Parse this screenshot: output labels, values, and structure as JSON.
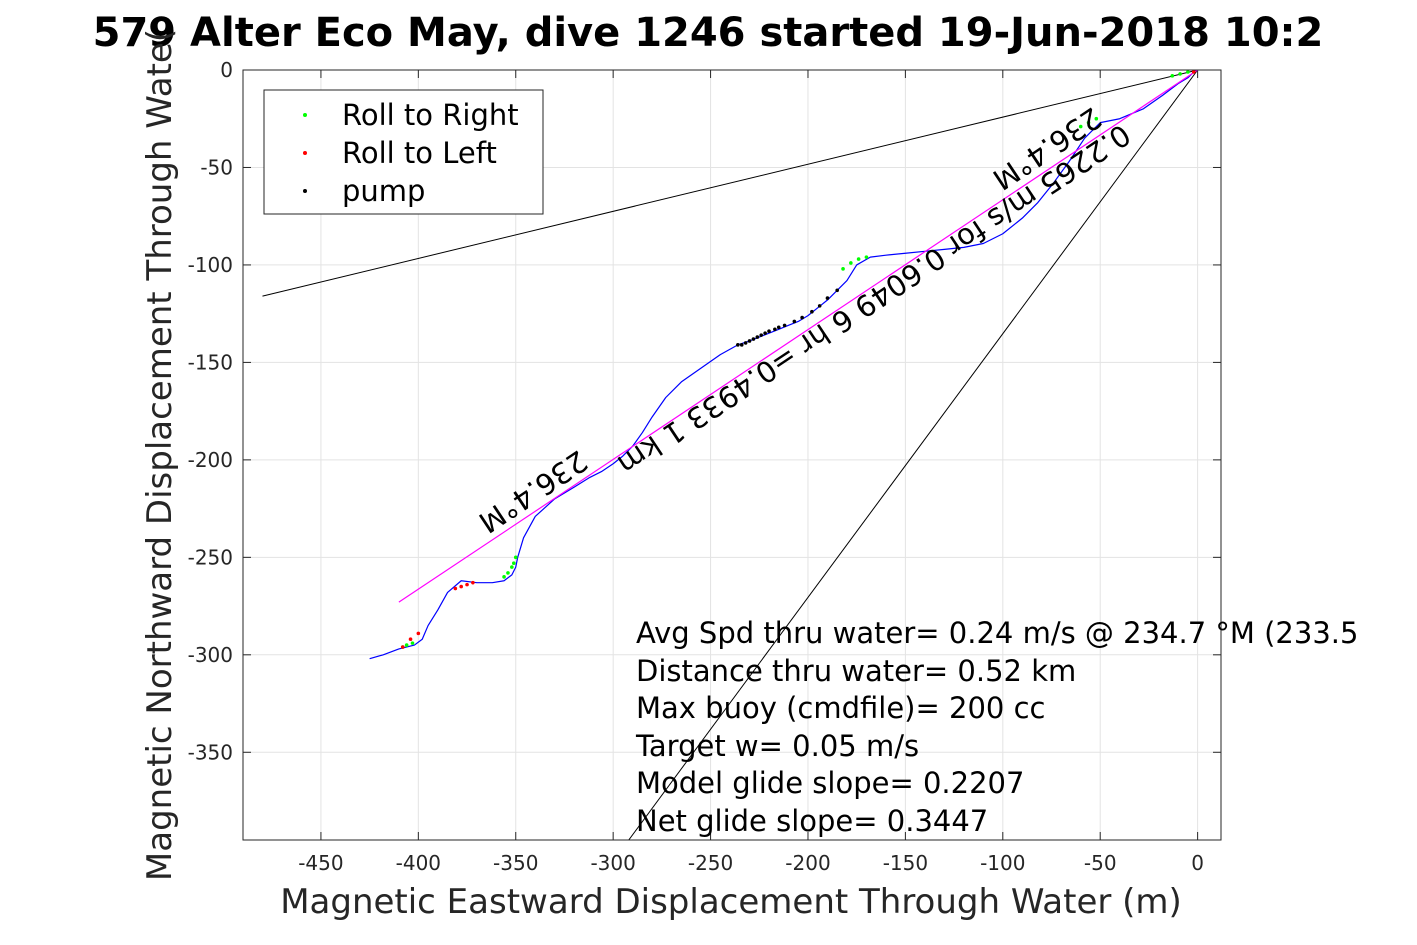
{
  "chart_data": {
    "type": "line",
    "title": "579 Alter Eco May, dive 1246 started 19-Jun-2018 10:2",
    "xlabel": "Magnetic Eastward Displacement Through Water (m)",
    "ylabel": "Magnetic Northward Displacement Through Wate(",
    "xlim": [
      -490,
      12
    ],
    "ylim": [
      -395,
      0
    ],
    "xticks": [
      -450,
      -400,
      -350,
      -300,
      -250,
      -200,
      -150,
      -100,
      -50,
      0
    ],
    "yticks": [
      0,
      -50,
      -100,
      -150,
      -200,
      -250,
      -300,
      -350
    ],
    "grid": true,
    "legend": {
      "placement": "top-left",
      "entries": [
        {
          "label": "Roll to Right",
          "color": "#00ff00"
        },
        {
          "label": "Roll to Left",
          "color": "#ff0000"
        },
        {
          "label": "pump",
          "color": "#000000"
        }
      ]
    },
    "series": [
      {
        "role": "track",
        "color": "#0000ff",
        "x": [
          0,
          -2,
          -5,
          -10,
          -18,
          -28,
          -40,
          -50,
          -58,
          -66,
          -74,
          -82,
          -90,
          -100,
          -110,
          -120,
          -130,
          -140,
          -150,
          -160,
          -168,
          -175,
          -180,
          -185,
          -190,
          -195,
          -200,
          -205,
          -210,
          -215,
          -220,
          -225,
          -230,
          -236,
          -245,
          -255,
          -265,
          -273,
          -280,
          -285,
          -290,
          -295,
          -300,
          -306,
          -312,
          -320,
          -330,
          -340,
          -346,
          -349,
          -350,
          -352,
          -356,
          -362,
          -370,
          -378,
          -385,
          -390,
          -395,
          -398,
          -402,
          -410,
          -418,
          -425
        ],
        "y": [
          0,
          -1,
          -4,
          -7,
          -13,
          -20,
          -25,
          -27,
          -35,
          -47,
          -58,
          -68,
          -76,
          -84,
          -89,
          -91,
          -92,
          -93,
          -94,
          -95,
          -96,
          -100,
          -108,
          -113,
          -118,
          -122,
          -126,
          -129,
          -131,
          -133,
          -135,
          -137,
          -139,
          -141,
          -146,
          -153,
          -160,
          -168,
          -178,
          -186,
          -193,
          -198,
          -202,
          -206,
          -209,
          -214,
          -220,
          -229,
          -240,
          -250,
          -255,
          -259,
          -262,
          -263,
          -263,
          -262,
          -268,
          -277,
          -285,
          -292,
          -295,
          -297,
          -300,
          -302
        ]
      },
      {
        "role": "net-course",
        "color": "#ff00ff",
        "x": [
          0,
          -410
        ],
        "y": [
          0,
          -273
        ]
      }
    ],
    "guide_lines": [
      {
        "x": [
          0,
          -480
        ],
        "y": [
          0,
          -116
        ]
      },
      {
        "x": [
          0,
          -292
        ],
        "y": [
          0,
          -395
        ]
      }
    ],
    "markers": {
      "roll_right": {
        "color": "#00ff00",
        "x": [
          -5,
          -9,
          -13,
          -52,
          -56,
          -60,
          -170,
          -174,
          -178,
          -182,
          -350,
          -351,
          -352,
          -354,
          -356,
          -403,
          -406,
          -408
        ],
        "y": [
          -1,
          -2,
          -3,
          -25,
          -27,
          -29,
          -96,
          -97,
          -99,
          -102,
          -250,
          -253,
          -255,
          -258,
          -260,
          -294,
          -295,
          -296
        ]
      },
      "roll_left": {
        "color": "#ff0000",
        "x": [
          -2,
          -372,
          -375,
          -378,
          -381,
          -400,
          -404,
          -408
        ],
        "y": [
          -1,
          -263,
          -264,
          -265,
          -266,
          -289,
          -292,
          -296
        ]
      },
      "pump": {
        "color": "#000000",
        "x": [
          -185,
          -190,
          -194,
          -198,
          -203,
          -207,
          -212,
          -215,
          -217,
          -220,
          -222,
          -224,
          -226,
          -228,
          -230,
          -232,
          -234,
          -236
        ],
        "y": [
          -113,
          -117,
          -121,
          -124,
          -127,
          -129,
          -131,
          -132,
          -133,
          -134,
          -135,
          -136,
          -137,
          -138,
          -139,
          -140,
          -141,
          -141
        ]
      }
    },
    "angle_labels": [
      {
        "text": "236.4°M"
      },
      {
        "text": "236.4°M"
      },
      {
        "text": "0.2265 m/s for 0.6049 6 hr =0.4933 1 km"
      }
    ],
    "annotations": [
      "Avg Spd thru water=  0.24 m/s @ 234.7 °M (233.5",
      "Distance thru water=  0.52 km",
      "Max buoy (cmdfile)= 200 cc",
      "Target w= 0.05 m/s",
      "Model glide slope= 0.2207",
      "Net glide slope= 0.3447"
    ]
  }
}
